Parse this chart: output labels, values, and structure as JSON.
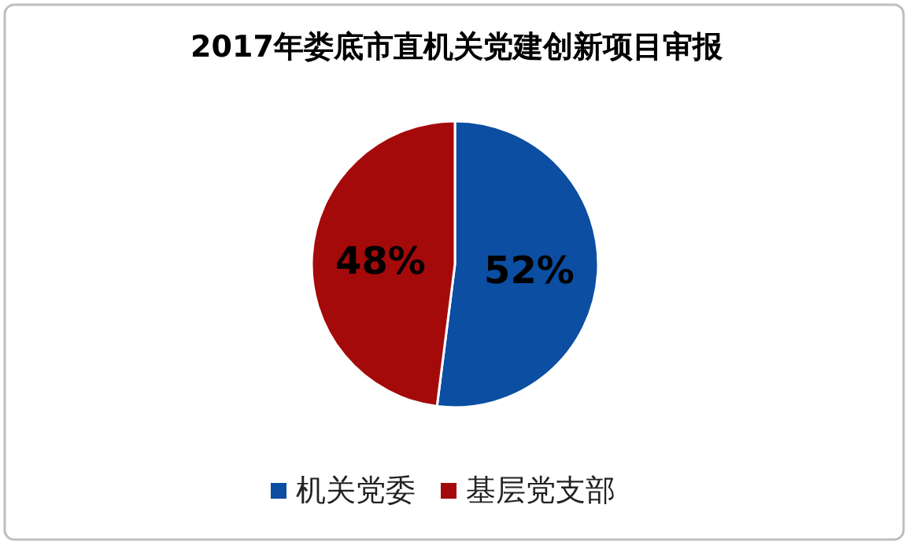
{
  "chart_data": {
    "type": "pie",
    "title": "2017年娄底市直机关党建创新项目审报",
    "categories": [
      "机关党委",
      "基层党支部"
    ],
    "values": [
      52,
      48
    ],
    "value_labels": [
      "52%",
      "48%"
    ],
    "colors": [
      "#0b4ea2",
      "#a50a0a"
    ],
    "legend": "bottom"
  }
}
